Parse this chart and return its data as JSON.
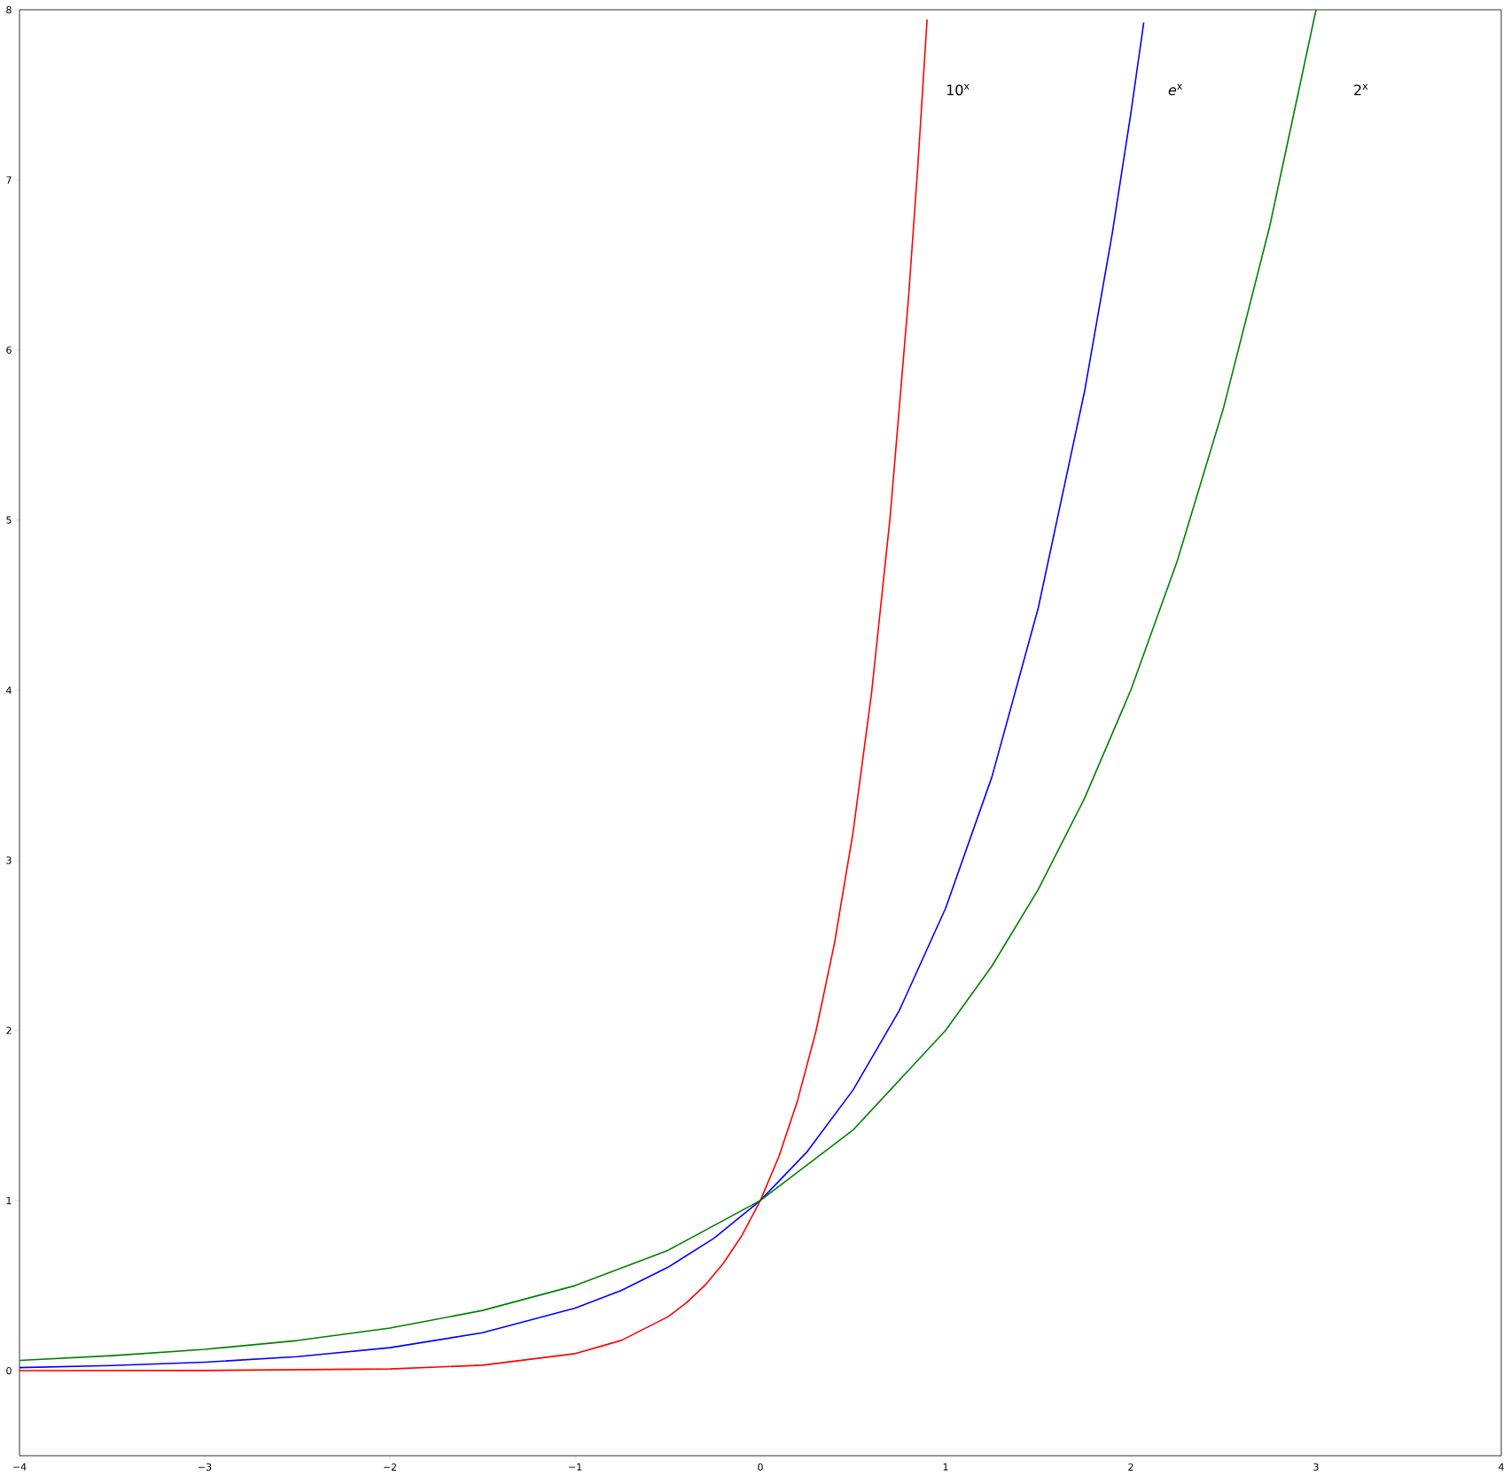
{
  "chart_data": {
    "type": "line",
    "xlim": [
      -4,
      4
    ],
    "ylim": [
      -0.5,
      8
    ],
    "xticks": [
      {
        "value": -4,
        "label": "−4"
      },
      {
        "value": -3,
        "label": "−3"
      },
      {
        "value": -2,
        "label": "−2"
      },
      {
        "value": -1,
        "label": "−1"
      },
      0,
      1,
      2,
      3,
      4
    ],
    "yticks": [
      0,
      1,
      2,
      3,
      4,
      5,
      6,
      7,
      8
    ],
    "series": [
      {
        "color": "#ff0000",
        "x": [
          -4,
          -3,
          -2,
          -1.5,
          -1,
          -0.75,
          -0.5,
          -0.4,
          -0.3,
          -0.2,
          -0.1,
          0,
          0.1,
          0.2,
          0.3,
          0.4,
          0.5,
          0.6,
          0.7,
          0.8,
          0.85,
          0.9
        ],
        "values": [
          0,
          0.001,
          0.01,
          0.032,
          0.1,
          0.178,
          0.316,
          0.398,
          0.501,
          0.631,
          0.794,
          1,
          1.259,
          1.585,
          1.995,
          2.512,
          3.162,
          3.981,
          5.012,
          6.31,
          7.079,
          7.943
        ]
      },
      {
        "color": "#0000ff",
        "x": [
          -4,
          -3.5,
          -3,
          -2.5,
          -2,
          -1.5,
          -1,
          -0.75,
          -0.5,
          -0.25,
          0,
          0.25,
          0.5,
          0.75,
          1,
          1.25,
          1.5,
          1.75,
          1.9,
          2,
          2.07
        ],
        "values": [
          0.018,
          0.03,
          0.05,
          0.082,
          0.135,
          0.223,
          0.368,
          0.472,
          0.607,
          0.779,
          1,
          1.284,
          1.649,
          2.117,
          2.718,
          3.49,
          4.482,
          5.755,
          6.686,
          7.389,
          7.925
        ]
      },
      {
        "color": "#008000",
        "x": [
          -4,
          -3.5,
          -3,
          -2.5,
          -2,
          -1.5,
          -1,
          -0.5,
          0,
          0.5,
          1,
          1.25,
          1.5,
          1.75,
          2,
          2.25,
          2.5,
          2.75,
          3
        ],
        "values": [
          0.06,
          0.088,
          0.125,
          0.177,
          0.25,
          0.354,
          0.5,
          0.707,
          1,
          1.414,
          2,
          2.378,
          2.828,
          3.364,
          4,
          4.757,
          5.657,
          6.727,
          8
        ]
      }
    ],
    "annotations": [
      "10$^{x}$",
      "*e*$^{x}$",
      "2$^{x}$"
    ]
  }
}
